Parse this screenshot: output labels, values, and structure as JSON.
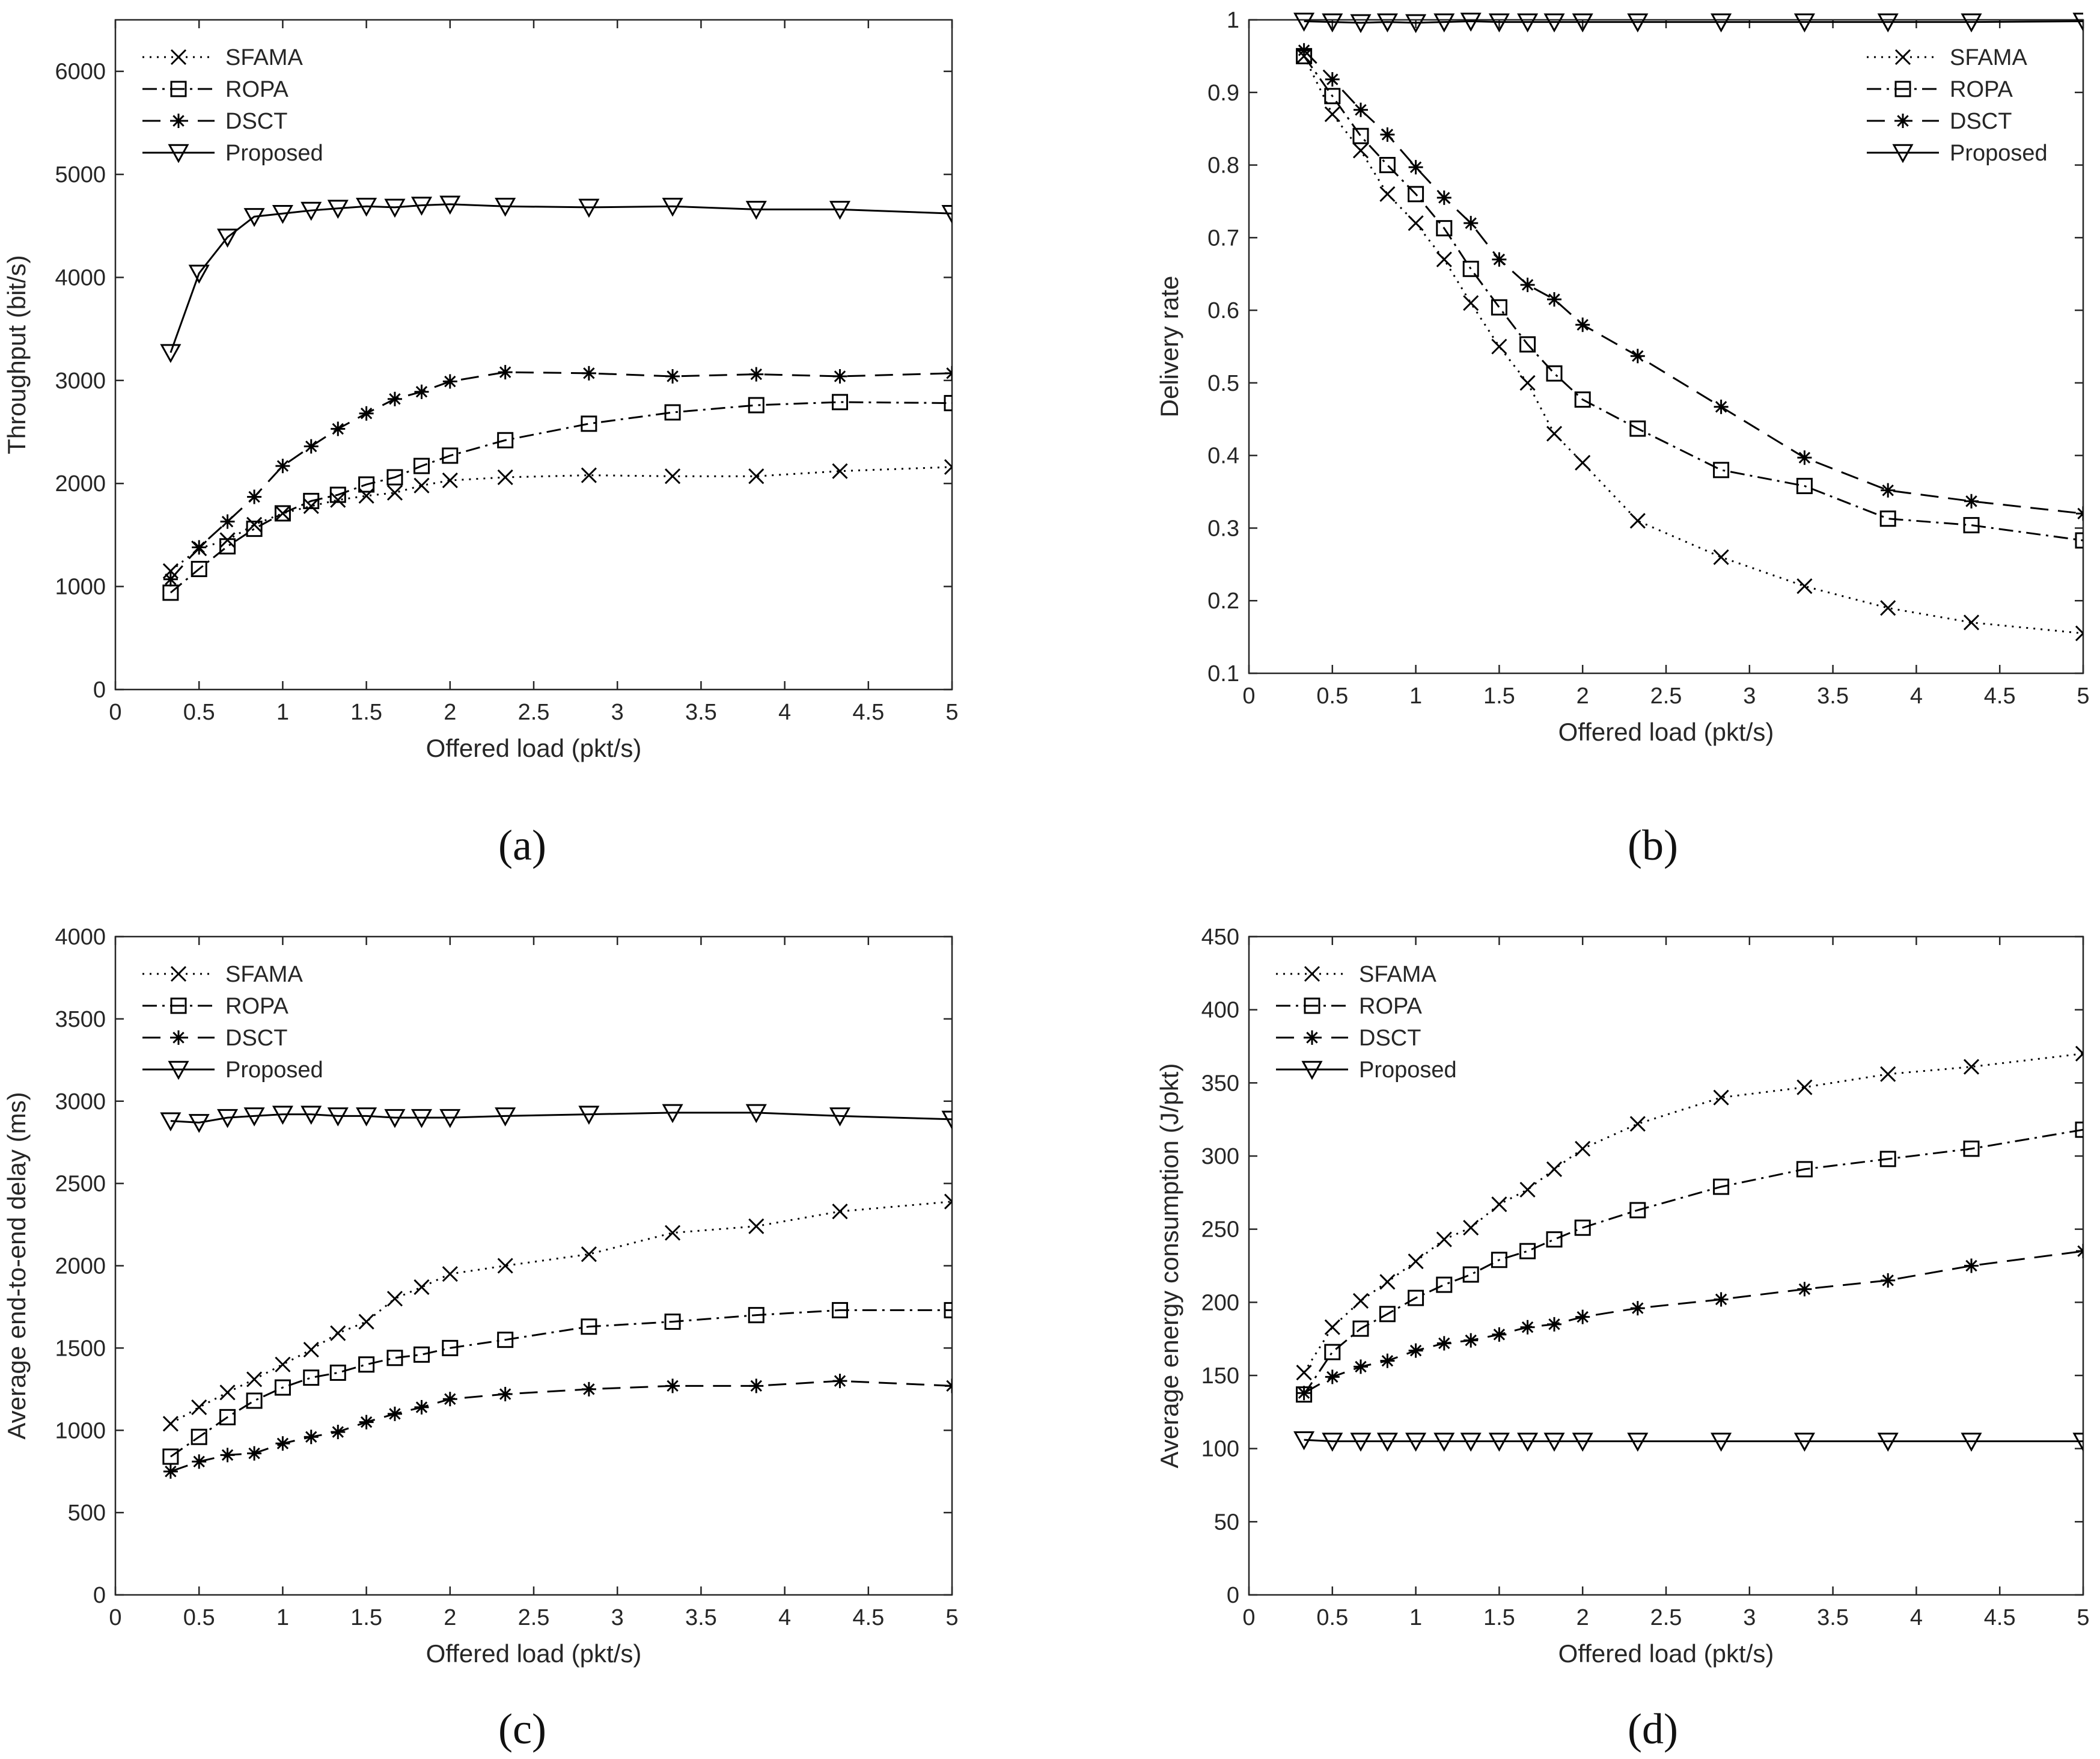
{
  "figure": {
    "panel_labels": [
      "(a)",
      "(b)",
      "(c)",
      "(d)"
    ]
  },
  "styles": {
    "line_color": "#000000",
    "axis_color": "#262626",
    "background": "#ffffff"
  },
  "chart_data": [
    {
      "type": "line",
      "panel": "(a)",
      "xlabel": "Offered load (pkt/s)",
      "ylabel": "Throughput (bit/s)",
      "xlim": [
        0,
        5
      ],
      "ylim": [
        0,
        6500
      ],
      "xticks": [
        0,
        0.5,
        1,
        1.5,
        2,
        2.5,
        3,
        3.5,
        4,
        4.5,
        5
      ],
      "yticks": [
        0,
        1000,
        2000,
        3000,
        4000,
        5000,
        6000
      ],
      "grid": false,
      "legend": "top-left",
      "x": [
        0.33,
        0.5,
        0.67,
        0.83,
        1.0,
        1.17,
        1.33,
        1.5,
        1.67,
        1.83,
        2.0,
        2.33,
        2.83,
        3.33,
        3.83,
        4.33,
        5.0
      ],
      "series": [
        {
          "name": "SFAMA",
          "marker": "x",
          "dash": "dotted",
          "values": [
            1150,
            1370,
            1450,
            1600,
            1710,
            1780,
            1840,
            1880,
            1910,
            1980,
            2030,
            2060,
            2080,
            2070,
            2070,
            2120,
            2160
          ]
        },
        {
          "name": "ROPA",
          "marker": "square",
          "dash": "dashdot",
          "values": [
            940,
            1170,
            1390,
            1560,
            1710,
            1830,
            1890,
            1990,
            2060,
            2170,
            2270,
            2420,
            2580,
            2690,
            2760,
            2790,
            2780
          ]
        },
        {
          "name": "DSCT",
          "marker": "star",
          "dash": "dashed",
          "values": [
            1070,
            1380,
            1630,
            1870,
            2170,
            2360,
            2530,
            2680,
            2820,
            2890,
            2990,
            3080,
            3070,
            3040,
            3060,
            3040,
            3070
          ]
        },
        {
          "name": "Proposed",
          "marker": "triangle",
          "dash": "solid",
          "values": [
            3270,
            4040,
            4390,
            4590,
            4620,
            4650,
            4670,
            4690,
            4680,
            4700,
            4710,
            4690,
            4680,
            4690,
            4660,
            4660,
            4620
          ]
        }
      ]
    },
    {
      "type": "line",
      "panel": "(b)",
      "xlabel": "Offered load (pkt/s)",
      "ylabel": "Delivery rate",
      "xlim": [
        0,
        5
      ],
      "ylim": [
        0.1,
        1
      ],
      "xticks": [
        0,
        0.5,
        1,
        1.5,
        2,
        2.5,
        3,
        3.5,
        4,
        4.5,
        5
      ],
      "yticks": [
        0.1,
        0.2,
        0.3,
        0.4,
        0.5,
        0.6,
        0.7,
        0.8,
        0.9,
        1
      ],
      "grid": false,
      "legend": "top-right",
      "x": [
        0.33,
        0.5,
        0.67,
        0.83,
        1.0,
        1.17,
        1.33,
        1.5,
        1.67,
        1.83,
        2.0,
        2.33,
        2.83,
        3.33,
        3.83,
        4.33,
        5.0
      ],
      "series": [
        {
          "name": "SFAMA",
          "marker": "x",
          "dash": "dotted",
          "values": [
            0.95,
            0.87,
            0.82,
            0.76,
            0.72,
            0.67,
            0.61,
            0.55,
            0.5,
            0.43,
            0.39,
            0.31,
            0.26,
            0.22,
            0.19,
            0.17,
            0.155
          ]
        },
        {
          "name": "ROPA",
          "marker": "square",
          "dash": "dashdot",
          "values": [
            0.95,
            0.895,
            0.84,
            0.8,
            0.76,
            0.713,
            0.657,
            0.604,
            0.553,
            0.513,
            0.477,
            0.437,
            0.38,
            0.358,
            0.313,
            0.304,
            0.283
          ]
        },
        {
          "name": "DSCT",
          "marker": "star",
          "dash": "dashed",
          "values": [
            0.958,
            0.918,
            0.876,
            0.842,
            0.797,
            0.755,
            0.72,
            0.67,
            0.635,
            0.615,
            0.58,
            0.537,
            0.467,
            0.397,
            0.352,
            0.337,
            0.32
          ]
        },
        {
          "name": "Proposed",
          "marker": "triangle",
          "dash": "solid",
          "values": [
            0.998,
            0.997,
            0.996,
            0.997,
            0.996,
            0.997,
            0.998,
            0.997,
            0.997,
            0.997,
            0.997,
            0.997,
            0.997,
            0.997,
            0.997,
            0.997,
            0.998
          ]
        }
      ]
    },
    {
      "type": "line",
      "panel": "(c)",
      "xlabel": "Offered load (pkt/s)",
      "ylabel": "Average end-to-end delay (ms)",
      "xlim": [
        0,
        5
      ],
      "ylim": [
        0,
        4000
      ],
      "xticks": [
        0,
        0.5,
        1,
        1.5,
        2,
        2.5,
        3,
        3.5,
        4,
        4.5,
        5
      ],
      "yticks": [
        0,
        500,
        1000,
        1500,
        2000,
        2500,
        3000,
        3500,
        4000
      ],
      "grid": false,
      "legend": "top-left",
      "x": [
        0.33,
        0.5,
        0.67,
        0.83,
        1.0,
        1.17,
        1.33,
        1.5,
        1.67,
        1.83,
        2.0,
        2.33,
        2.83,
        3.33,
        3.83,
        4.33,
        5.0
      ],
      "series": [
        {
          "name": "SFAMA",
          "marker": "x",
          "dash": "dotted",
          "values": [
            1040,
            1140,
            1230,
            1310,
            1400,
            1490,
            1590,
            1660,
            1800,
            1870,
            1950,
            2000,
            2070,
            2200,
            2240,
            2330,
            2390
          ]
        },
        {
          "name": "ROPA",
          "marker": "square",
          "dash": "dashdot",
          "values": [
            840,
            960,
            1080,
            1180,
            1260,
            1320,
            1350,
            1400,
            1440,
            1460,
            1500,
            1550,
            1630,
            1660,
            1700,
            1730,
            1730
          ]
        },
        {
          "name": "DSCT",
          "marker": "star",
          "dash": "dashed",
          "values": [
            750,
            810,
            850,
            860,
            920,
            960,
            990,
            1050,
            1100,
            1140,
            1190,
            1220,
            1250,
            1270,
            1270,
            1300,
            1270
          ]
        },
        {
          "name": "Proposed",
          "marker": "triangle",
          "dash": "solid",
          "values": [
            2880,
            2870,
            2900,
            2910,
            2920,
            2920,
            2910,
            2910,
            2900,
            2900,
            2900,
            2910,
            2920,
            2930,
            2930,
            2910,
            2890
          ]
        }
      ]
    },
    {
      "type": "line",
      "panel": "(d)",
      "xlabel": "Offered load (pkt/s)",
      "ylabel": "Average energy consumption (J/pkt)",
      "xlim": [
        0,
        5
      ],
      "ylim": [
        0,
        450
      ],
      "xticks": [
        0,
        0.5,
        1,
        1.5,
        2,
        2.5,
        3,
        3.5,
        4,
        4.5,
        5
      ],
      "yticks": [
        0,
        50,
        100,
        150,
        200,
        250,
        300,
        350,
        400,
        450
      ],
      "grid": false,
      "legend": "top-left",
      "x": [
        0.33,
        0.5,
        0.67,
        0.83,
        1.0,
        1.17,
        1.33,
        1.5,
        1.67,
        1.83,
        2.0,
        2.33,
        2.83,
        3.33,
        3.83,
        4.33,
        5.0
      ],
      "series": [
        {
          "name": "SFAMA",
          "marker": "x",
          "dash": "dotted",
          "values": [
            152,
            183,
            201,
            214,
            228,
            243,
            251,
            267,
            277,
            291,
            305,
            322,
            340,
            347,
            356,
            361,
            370
          ]
        },
        {
          "name": "ROPA",
          "marker": "square",
          "dash": "dashdot",
          "values": [
            137,
            166,
            182,
            192,
            203,
            212,
            219,
            229,
            235,
            243,
            251,
            263,
            279,
            291,
            298,
            305,
            318
          ]
        },
        {
          "name": "DSCT",
          "marker": "star",
          "dash": "dashed",
          "values": [
            138,
            149,
            156,
            160,
            167,
            172,
            174,
            178,
            183,
            185,
            190,
            196,
            202,
            209,
            215,
            225,
            235
          ]
        },
        {
          "name": "Proposed",
          "marker": "triangle",
          "dash": "solid",
          "values": [
            106,
            105,
            105,
            105,
            105,
            105,
            105,
            105,
            105,
            105,
            105,
            105,
            105,
            105,
            105,
            105,
            105
          ]
        }
      ]
    }
  ]
}
